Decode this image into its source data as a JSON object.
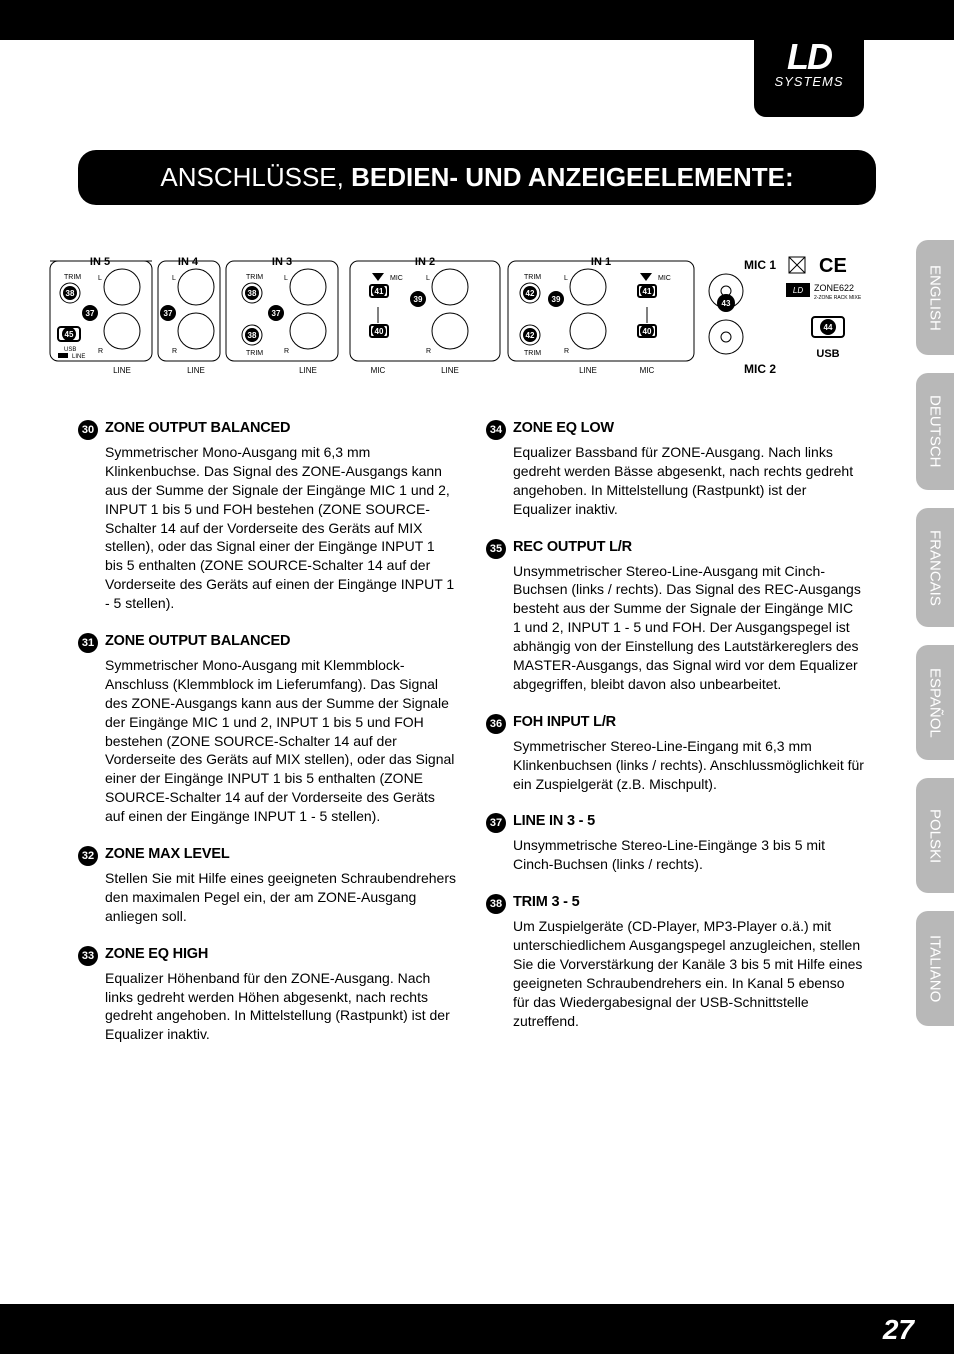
{
  "logo": {
    "brand": "LD",
    "sub": "SYSTEMS"
  },
  "title": {
    "light": "ANSCHLÜSSE, ",
    "bold": "BEDIEN- UND ANZEIGEELEMENTE:"
  },
  "diagram": {
    "groups": [
      "IN 5",
      "IN 4",
      "IN 3",
      "IN 2",
      "IN 1"
    ],
    "mic1": "MIC 1",
    "mic2": "MIC 2",
    "usb": "USB",
    "zone_label": "ZONE622",
    "zone_sub": "2-ZONE RACK MIXE",
    "labels": {
      "trim": "TRIM",
      "line": "LINE",
      "mic": "MIC",
      "l": "L",
      "r": "R",
      "usb_small": "USB"
    },
    "callouts": {
      "37": "37",
      "38": "38",
      "39": "39",
      "40": "40",
      "41": "41",
      "42": "42",
      "43": "43",
      "44": "44",
      "45": "45"
    }
  },
  "left_col": [
    {
      "num": "30",
      "title": "ZONE OUTPUT BALANCED",
      "body": "Symmetrischer Mono-Ausgang mit 6,3 mm Klinkenbuchse. Das Signal des ZONE-Ausgangs kann aus der Summe der Signale der Eingänge MIC 1 und 2, INPUT 1 bis 5 und FOH bestehen (ZONE SOURCE-Schalter 14 auf der Vorderseite des Geräts auf MIX stellen), oder das Signal einer der Eingänge INPUT 1 bis 5 enthalten (ZONE SOURCE-Schalter 14 auf der Vorderseite des Geräts auf einen der Eingänge INPUT 1 - 5 stellen)."
    },
    {
      "num": "31",
      "title": "ZONE OUTPUT BALANCED",
      "body": "Symmetrischer Mono-Ausgang mit Klemmblock-Anschluss (Klemmblock im Lieferumfang). Das Signal des ZONE-Ausgangs kann aus der Summe der Signale der Eingänge MIC 1 und 2, INPUT 1 bis 5 und FOH bestehen (ZONE SOURCE-Schalter 14 auf der Vorderseite des Geräts auf MIX stellen), oder das Signal einer der Eingänge INPUT 1 bis 5 enthalten (ZONE SOURCE-Schalter 14 auf der Vorderseite des Geräts auf einen der Eingänge INPUT 1 - 5 stellen)."
    },
    {
      "num": "32",
      "title": "ZONE MAX LEVEL",
      "body": "Stellen Sie mit Hilfe eines geeigneten Schraubendrehers den maximalen Pegel ein, der am ZONE-Ausgang anliegen soll."
    },
    {
      "num": "33",
      "title": "ZONE EQ HIGH",
      "body": "Equalizer Höhenband für den ZONE-Ausgang. Nach links gedreht werden Höhen abgesenkt, nach rechts gedreht angehoben. In Mittelstellung (Rastpunkt) ist der Equalizer inaktiv."
    }
  ],
  "right_col": [
    {
      "num": "34",
      "title": "ZONE EQ LOW",
      "body": "Equalizer Bassband für ZONE-Ausgang. Nach links gedreht werden Bässe abgesenkt, nach rechts gedreht angehoben. In Mittelstellung (Rastpunkt) ist der Equalizer inaktiv."
    },
    {
      "num": "35",
      "title": "REC OUTPUT L/R",
      "body": "Unsymmetrischer Stereo-Line-Ausgang mit Cinch-Buchsen (links / rechts). Das Signal des REC-Ausgangs besteht aus der Summe der Signale der Eingänge MIC 1 und 2, INPUT 1 - 5 und FOH. Der Ausgangspegel ist abhängig von der Einstellung des Lautstärkereglers des MASTER-Ausgangs, das Signal wird vor dem Equalizer abgegriffen, bleibt davon also unbearbeitet."
    },
    {
      "num": "36",
      "title": "FOH INPUT L/R",
      "body": "Symmetrischer Stereo-Line-Eingang mit 6,3 mm Klinkenbuchsen (links / rechts). Anschlussmöglichkeit für ein Zuspielgerät (z.B. Mischpult)."
    },
    {
      "num": "37",
      "title": "LINE IN 3 - 5",
      "body": "Unsymmetrische Stereo-Line-Eingänge 3 bis 5 mit Cinch-Buchsen (links / rechts)."
    },
    {
      "num": "38",
      "title": "TRIM 3 - 5",
      "body": "Um Zuspielgeräte (CD-Player, MP3-Player o.ä.) mit unterschiedlichem Ausgangspegel anzugleichen, stellen Sie die Vorverstärkung der Kanäle 3 bis 5 mit Hilfe eines geeigneten Schraubendrehers ein. In Kanal 5 ebenso für das Wiedergabesignal der USB-Schnittstelle zutreffend."
    }
  ],
  "langs": [
    "ENGLISH",
    "DEUTSCH",
    "FRANCAIS",
    "ESPAÑOL",
    "POLSKI",
    "ITALIANO"
  ],
  "page_num": "27"
}
